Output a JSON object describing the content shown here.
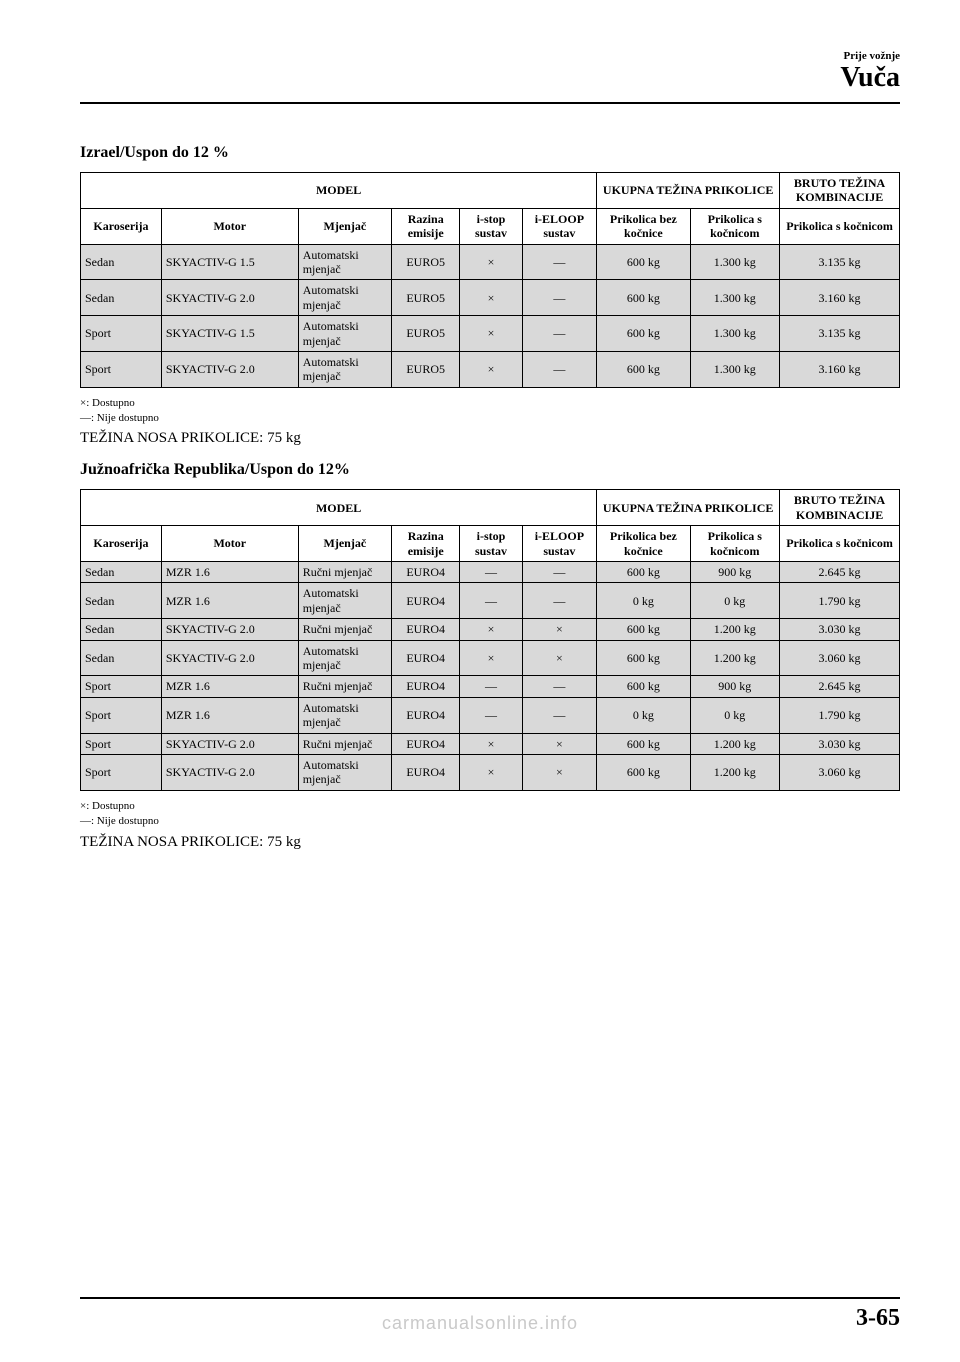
{
  "header": {
    "small": "Prije vožnje",
    "big": "Vuča"
  },
  "section1": {
    "heading": "Izrael/Uspon do 12 %",
    "th_model": "MODEL",
    "th_ukupna": "UKUPNA TEŽINA PRIKOLICE",
    "th_bruto": "BRUTO TEŽINA KOMBINACIJE",
    "th_karoserija": "Karoserija",
    "th_motor": "Motor",
    "th_mjenjac": "Mjenjač",
    "th_razina": "Razina emisije",
    "th_istop": "i-stop sustav",
    "th_eloop": "i-ELOOP sustav",
    "th_pbez": "Prikolica bez kočnice",
    "th_ps": "Prikolica s kočnicom",
    "th_bruto2": "Prikolica s kočnicom",
    "rows": [
      {
        "k": "Sedan",
        "mot": "SKYACTIV-G 1.5",
        "mj": "Automatski mjenjač",
        "rz": "EURO5",
        "is": "×",
        "il": "―",
        "pb": "600 kg",
        "ps": "1.300 kg",
        "br": "3.135 kg"
      },
      {
        "k": "Sedan",
        "mot": "SKYACTIV-G 2.0",
        "mj": "Automatski mjenjač",
        "rz": "EURO5",
        "is": "×",
        "il": "―",
        "pb": "600 kg",
        "ps": "1.300 kg",
        "br": "3.160 kg"
      },
      {
        "k": "Sport",
        "mot": "SKYACTIV-G 1.5",
        "mj": "Automatski mjenjač",
        "rz": "EURO5",
        "is": "×",
        "il": "―",
        "pb": "600 kg",
        "ps": "1.300 kg",
        "br": "3.135 kg"
      },
      {
        "k": "Sport",
        "mot": "SKYACTIV-G 2.0",
        "mj": "Automatski mjenjač",
        "rz": "EURO5",
        "is": "×",
        "il": "―",
        "pb": "600 kg",
        "ps": "1.300 kg",
        "br": "3.160 kg"
      }
    ],
    "fn1": "×: Dostupno",
    "fn2": "―: Nije dostupno",
    "nose": "TEŽINA NOSA PRIKOLICE: 75 kg"
  },
  "section2": {
    "heading": "Južnoafrička Republika/Uspon do 12%",
    "rows": [
      {
        "k": "Sedan",
        "mot": "MZR 1.6",
        "mj": "Ručni mjenjač",
        "rz": "EURO4",
        "is": "―",
        "il": "―",
        "pb": "600 kg",
        "ps": "900 kg",
        "br": "2.645 kg"
      },
      {
        "k": "Sedan",
        "mot": "MZR 1.6",
        "mj": "Automatski mjenjač",
        "rz": "EURO4",
        "is": "―",
        "il": "―",
        "pb": "0 kg",
        "ps": "0 kg",
        "br": "1.790 kg"
      },
      {
        "k": "Sedan",
        "mot": "SKYACTIV-G 2.0",
        "mj": "Ručni mjenjač",
        "rz": "EURO4",
        "is": "×",
        "il": "×",
        "pb": "600 kg",
        "ps": "1.200 kg",
        "br": "3.030 kg"
      },
      {
        "k": "Sedan",
        "mot": "SKYACTIV-G 2.0",
        "mj": "Automatski mjenjač",
        "rz": "EURO4",
        "is": "×",
        "il": "×",
        "pb": "600 kg",
        "ps": "1.200 kg",
        "br": "3.060 kg"
      },
      {
        "k": "Sport",
        "mot": "MZR 1.6",
        "mj": "Ručni mjenjač",
        "rz": "EURO4",
        "is": "―",
        "il": "―",
        "pb": "600 kg",
        "ps": "900 kg",
        "br": "2.645 kg"
      },
      {
        "k": "Sport",
        "mot": "MZR 1.6",
        "mj": "Automatski mjenjač",
        "rz": "EURO4",
        "is": "―",
        "il": "―",
        "pb": "0 kg",
        "ps": "0 kg",
        "br": "1.790 kg"
      },
      {
        "k": "Sport",
        "mot": "SKYACTIV-G 2.0",
        "mj": "Ručni mjenjač",
        "rz": "EURO4",
        "is": "×",
        "il": "×",
        "pb": "600 kg",
        "ps": "1.200 kg",
        "br": "3.030 kg"
      },
      {
        "k": "Sport",
        "mot": "SKYACTIV-G 2.0",
        "mj": "Automatski mjenjač",
        "rz": "EURO4",
        "is": "×",
        "il": "×",
        "pb": "600 kg",
        "ps": "1.200 kg",
        "br": "3.060 kg"
      }
    ],
    "fn1": "×: Dostupno",
    "fn2": "―: Nije dostupno",
    "nose": "TEŽINA NOSA PRIKOLICE: 75 kg"
  },
  "footer": {
    "page": "3-65",
    "watermark": "carmanualsonline.info"
  }
}
